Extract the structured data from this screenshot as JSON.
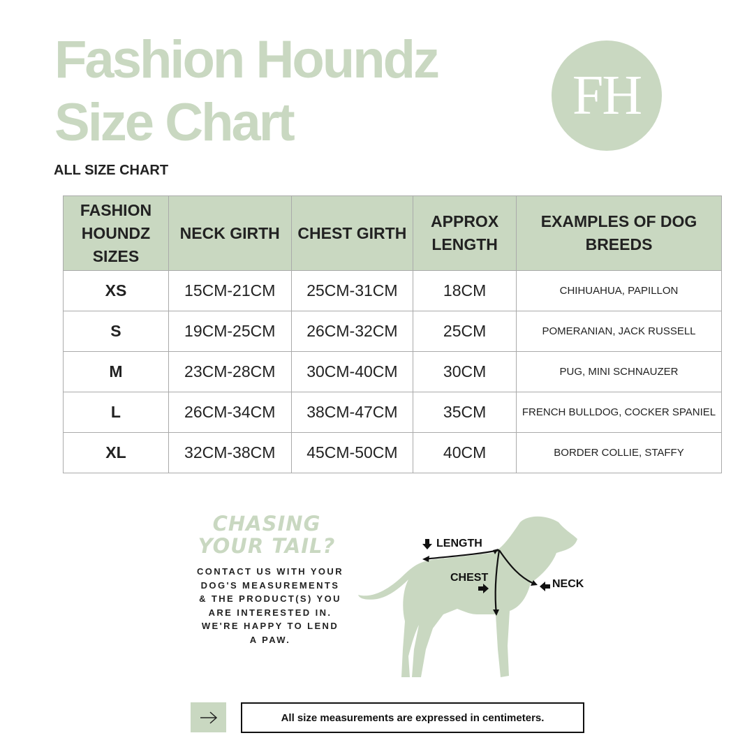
{
  "header": {
    "title_line1": "Fashion Houndz",
    "title_line2": "Size Chart",
    "logo_text": "FH",
    "subtitle": "ALL SIZE CHART"
  },
  "colors": {
    "accent": "#c9d8c1",
    "text": "#222222"
  },
  "table": {
    "headers": [
      "FASHION HOUNDZ SIZES",
      "NECK GIRTH",
      "CHEST GIRTH",
      "APPROX LENGTH",
      "EXAMPLES OF DOG BREEDS"
    ],
    "rows": [
      [
        "XS",
        "15CM-21CM",
        "25CM-31CM",
        "18CM",
        "CHIHUAHUA, PAPILLON"
      ],
      [
        "S",
        "19CM-25CM",
        "26CM-32CM",
        "25CM",
        "POMERANIAN, JACK RUSSELL"
      ],
      [
        "M",
        "23CM-28CM",
        "30CM-40CM",
        "30CM",
        "PUG, MINI SCHNAUZER"
      ],
      [
        "L",
        "26CM-34CM",
        "38CM-47CM",
        "35CM",
        "FRENCH BULLDOG, COCKER SPANIEL"
      ],
      [
        "XL",
        "32CM-38CM",
        "45CM-50CM",
        "40CM",
        "BORDER COLLIE, STAFFY"
      ]
    ]
  },
  "promo": {
    "heading": "CHASING YOUR TAIL?",
    "body": "CONTACT US WITH YOUR DOG'S MEASUREMENTS & THE PRODUCT(S) YOU ARE INTERESTED IN. WE'RE HAPPY TO LEND A PAW."
  },
  "diagram": {
    "length_label": "LENGTH",
    "chest_label": "CHEST",
    "neck_label": "NECK",
    "icon": "dog-silhouette"
  },
  "footer": {
    "arrow_icon": "arrow-right-icon",
    "note": "All size measurements are expressed in centimeters."
  }
}
